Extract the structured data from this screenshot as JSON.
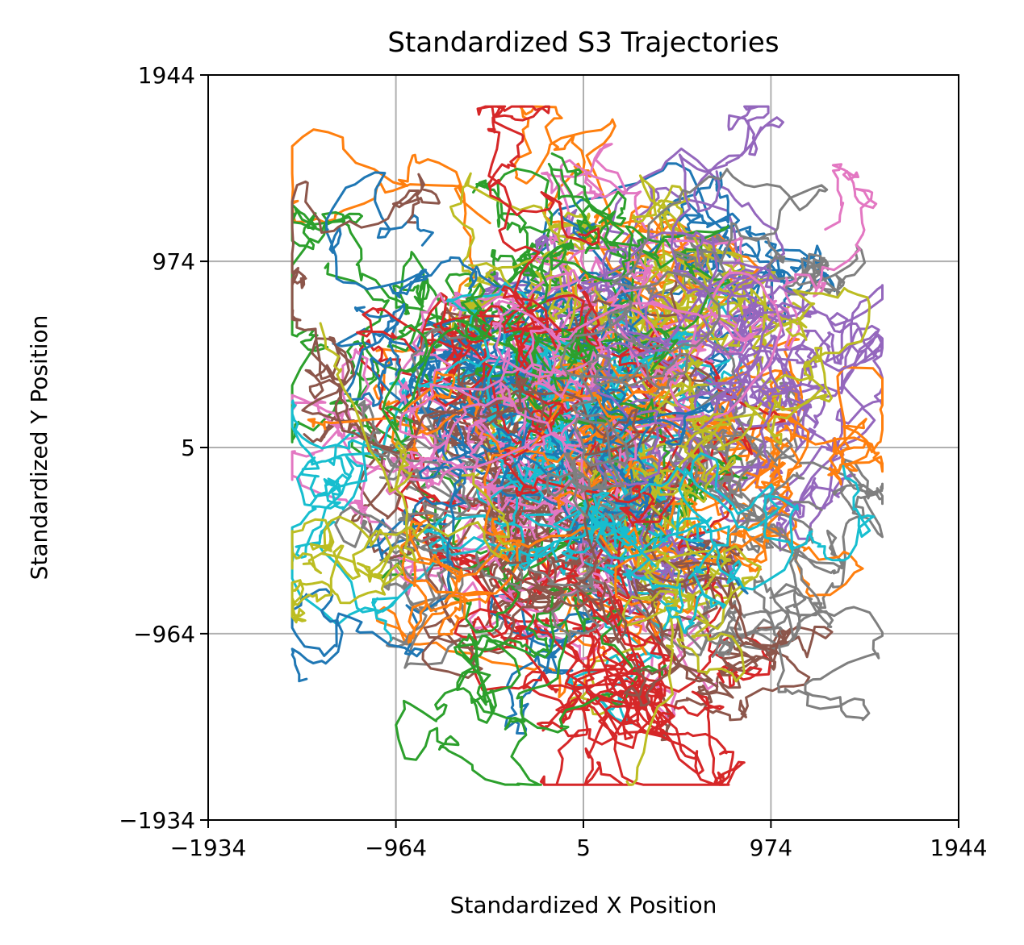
{
  "chart_data": {
    "type": "line",
    "title": "Standardized S3 Trajectories",
    "xlabel": "Standardized X Position",
    "ylabel": "Standardized Y Position",
    "xlim": [
      -1934,
      1944
    ],
    "ylim": [
      -1934,
      1944
    ],
    "xticks": [
      -1934,
      -964,
      5,
      974,
      1944
    ],
    "yticks": [
      -1934,
      -964,
      5,
      974,
      1944
    ],
    "xtick_labels": [
      "−1934",
      "−964",
      "5",
      "974",
      "1944"
    ],
    "ytick_labels": [
      "−1934",
      "−964",
      "5",
      "974",
      "1944"
    ],
    "grid": true,
    "legend": false,
    "trajectory_count": 80,
    "steps_per_trajectory": 240,
    "colors": [
      "#1f77b4",
      "#ff7f0e",
      "#2ca02c",
      "#d62728",
      "#9467bd",
      "#8c564b",
      "#e377c2",
      "#7f7f7f",
      "#bcbd22",
      "#17becf"
    ],
    "spread": {
      "x_extent": [
        -1500,
        1550
      ],
      "y_extent": [
        -1750,
        1780
      ]
    }
  }
}
